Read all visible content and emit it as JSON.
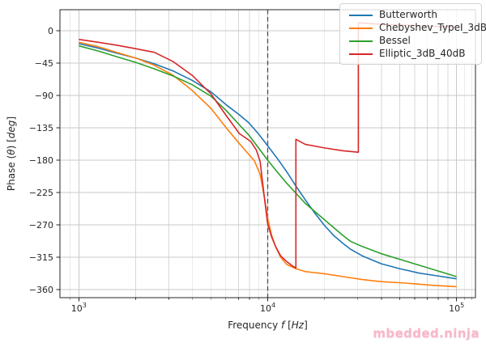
{
  "chart_data": {
    "type": "line",
    "title": "",
    "x_scale": "log",
    "xlabel_parts": [
      [
        "Frequency ",
        0
      ],
      [
        "f",
        1
      ],
      [
        " [",
        0
      ],
      [
        "Hz",
        1
      ],
      [
        "]",
        0
      ]
    ],
    "ylabel_parts": [
      [
        "Phase (",
        0
      ],
      [
        "θ",
        1
      ],
      [
        ") [",
        0
      ],
      [
        "deg",
        1
      ],
      [
        "]",
        0
      ]
    ],
    "xlim_log10": [
      2.9,
      5.1
    ],
    "ylim": [
      -371.25,
      29.25
    ],
    "grid": true,
    "x_major_ticks": [
      {
        "base": "10",
        "exp": "3",
        "value": 1000
      },
      {
        "base": "10",
        "exp": "4",
        "value": 10000
      },
      {
        "base": "10",
        "exp": "5",
        "value": 100000
      }
    ],
    "x_minor_ticks": [
      900,
      2000,
      3000,
      4000,
      5000,
      6000,
      7000,
      8000,
      9000,
      20000,
      30000,
      40000,
      50000,
      60000,
      70000,
      80000,
      90000,
      110000,
      120000
    ],
    "y_ticks": [
      {
        "label": "0",
        "value": 0
      },
      {
        "label": "−45",
        "value": -45
      },
      {
        "label": "−90",
        "value": -90
      },
      {
        "label": "−135",
        "value": -135
      },
      {
        "label": "−180",
        "value": -180
      },
      {
        "label": "−225",
        "value": -225
      },
      {
        "label": "−270",
        "value": -270
      },
      {
        "label": "−315",
        "value": -315
      },
      {
        "label": "−360",
        "value": -360
      }
    ],
    "reference_line": {
      "x": 10000,
      "style": "dashed",
      "color": "#4d4d4d"
    },
    "series": [
      {
        "name": "Butterworth",
        "color": "#1f77b4",
        "points": [
          [
            1000,
            -18
          ],
          [
            1260,
            -24
          ],
          [
            1580,
            -31
          ],
          [
            2000,
            -38
          ],
          [
            2510,
            -46
          ],
          [
            3160,
            -56
          ],
          [
            3980,
            -69
          ],
          [
            5010,
            -85
          ],
          [
            6030,
            -103
          ],
          [
            7080,
            -117
          ],
          [
            7940,
            -128
          ],
          [
            8910,
            -143
          ],
          [
            10000,
            -160
          ],
          [
            11200,
            -177
          ],
          [
            12600,
            -196
          ],
          [
            14100,
            -216
          ],
          [
            15800,
            -235
          ],
          [
            17800,
            -254
          ],
          [
            20000,
            -271
          ],
          [
            22400,
            -285
          ],
          [
            25100,
            -296
          ],
          [
            27500,
            -304
          ],
          [
            31600,
            -313
          ],
          [
            39800,
            -324
          ],
          [
            50100,
            -331
          ],
          [
            63100,
            -337
          ],
          [
            79400,
            -341
          ],
          [
            100000,
            -345
          ]
        ]
      },
      {
        "name": "Chebyshev_TypeI_3dB",
        "color": "#ff7f0e",
        "points": [
          [
            1000,
            -16
          ],
          [
            1260,
            -22
          ],
          [
            1580,
            -30
          ],
          [
            2000,
            -38
          ],
          [
            2510,
            -48
          ],
          [
            3160,
            -62
          ],
          [
            3980,
            -83
          ],
          [
            5010,
            -108
          ],
          [
            6030,
            -135
          ],
          [
            7080,
            -157
          ],
          [
            7940,
            -172
          ],
          [
            8510,
            -181
          ],
          [
            9120,
            -200
          ],
          [
            9550,
            -228
          ],
          [
            10000,
            -261
          ],
          [
            10500,
            -285
          ],
          [
            11000,
            -300
          ],
          [
            11700,
            -315
          ],
          [
            12600,
            -325
          ],
          [
            14100,
            -331
          ],
          [
            15800,
            -335
          ],
          [
            20000,
            -338
          ],
          [
            25100,
            -342
          ],
          [
            31600,
            -346
          ],
          [
            39800,
            -349
          ],
          [
            53700,
            -351
          ],
          [
            74100,
            -354
          ],
          [
            100000,
            -356
          ]
        ]
      },
      {
        "name": "Bessel",
        "color": "#2ca02c",
        "points": [
          [
            1000,
            -21
          ],
          [
            1260,
            -28
          ],
          [
            1580,
            -36
          ],
          [
            2000,
            -44
          ],
          [
            2510,
            -53
          ],
          [
            3160,
            -63
          ],
          [
            3980,
            -75
          ],
          [
            5010,
            -91
          ],
          [
            6030,
            -111
          ],
          [
            7940,
            -145
          ],
          [
            10000,
            -180
          ],
          [
            11200,
            -196
          ],
          [
            12600,
            -212
          ],
          [
            14100,
            -226
          ],
          [
            15800,
            -240
          ],
          [
            20000,
            -263
          ],
          [
            25100,
            -285
          ],
          [
            27500,
            -293
          ],
          [
            31600,
            -300
          ],
          [
            39800,
            -310
          ],
          [
            50100,
            -318
          ],
          [
            63100,
            -326
          ],
          [
            79400,
            -334
          ],
          [
            100000,
            -342
          ]
        ]
      },
      {
        "name": "Elliptic_3dB_40dB",
        "color": "#d62728",
        "points": [
          [
            1000,
            -12
          ],
          [
            1260,
            -16
          ],
          [
            1580,
            -20
          ],
          [
            2000,
            -25
          ],
          [
            2510,
            -30
          ],
          [
            3160,
            -43
          ],
          [
            3980,
            -62
          ],
          [
            5010,
            -88
          ],
          [
            6030,
            -118
          ],
          [
            7080,
            -143
          ],
          [
            8130,
            -154
          ],
          [
            8710,
            -166
          ],
          [
            9120,
            -182
          ],
          [
            9550,
            -227
          ],
          [
            10000,
            -269
          ],
          [
            10500,
            -287
          ],
          [
            11000,
            -300
          ],
          [
            11700,
            -313
          ],
          [
            12600,
            -321
          ],
          [
            13500,
            -327
          ],
          [
            14100,
            -330
          ],
          [
            14100,
            -151
          ],
          [
            15800,
            -158
          ],
          [
            20000,
            -163
          ],
          [
            25100,
            -167
          ],
          [
            30200,
            -169
          ],
          [
            30200,
            11
          ],
          [
            39800,
            9
          ],
          [
            63100,
            7
          ],
          [
            100000,
            5
          ]
        ]
      }
    ],
    "legend": {
      "position": "upper right"
    },
    "watermark": {
      "text": "mbedded.ninja",
      "color": "#f7b9c9"
    }
  }
}
